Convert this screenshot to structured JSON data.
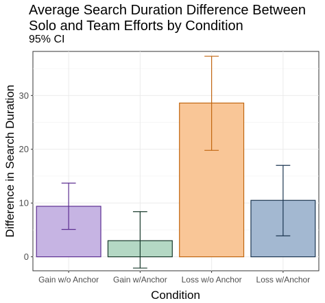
{
  "chart_data": {
    "type": "bar",
    "title": "Average Search Duration Difference Between Solo and Team Efforts by Condition",
    "subtitle": "95% CI",
    "xlabel": "Condition",
    "ylabel": "Difference in Search Duration",
    "categories": [
      "Gain w/o Anchor",
      "Gain w/Anchor",
      "Loss w/o Anchor",
      "Loss w/Anchor"
    ],
    "values": [
      9.4,
      3.0,
      28.6,
      10.5
    ],
    "ci_lower": [
      5.1,
      -2.1,
      19.8,
      3.9
    ],
    "ci_upper": [
      13.7,
      8.4,
      37.3,
      17.0
    ],
    "yticks": [
      0,
      10,
      20,
      30
    ],
    "ylim": [
      -2.6,
      38.2
    ],
    "grid": true,
    "fill_colors": [
      "#c6b4e3",
      "#b4d8c4",
      "#f9c697",
      "#a3b8d1"
    ],
    "stroke_colors": [
      "#5c2d91",
      "#17382a",
      "#c0650f",
      "#1b3550"
    ]
  }
}
